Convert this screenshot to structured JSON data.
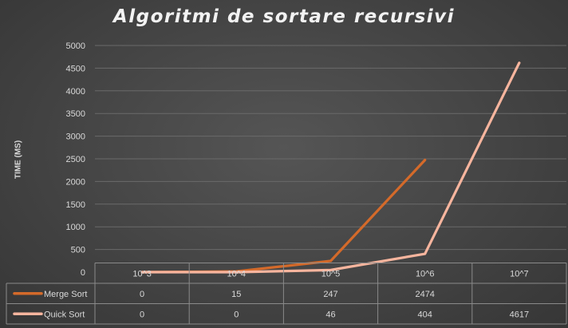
{
  "chart_data": {
    "type": "line",
    "title": "Algoritmi de sortare recursivi",
    "ylabel": "TIME (MS)",
    "xlabel": "",
    "categories": [
      "10^3",
      "10^4",
      "10^5",
      "10^6",
      "10^7"
    ],
    "ylim": [
      0,
      5000
    ],
    "yticks": [
      0,
      500,
      1000,
      1500,
      2000,
      2500,
      3000,
      3500,
      4000,
      4500,
      5000
    ],
    "grid": true,
    "legend": "data-table",
    "series": [
      {
        "name": "Merge Sort",
        "color": "#d46a2a",
        "values": [
          0,
          15,
          247,
          2474,
          null
        ]
      },
      {
        "name": "Quick Sort",
        "color": "#f7b59e",
        "values": [
          0,
          0,
          46,
          404,
          4617
        ]
      }
    ]
  }
}
